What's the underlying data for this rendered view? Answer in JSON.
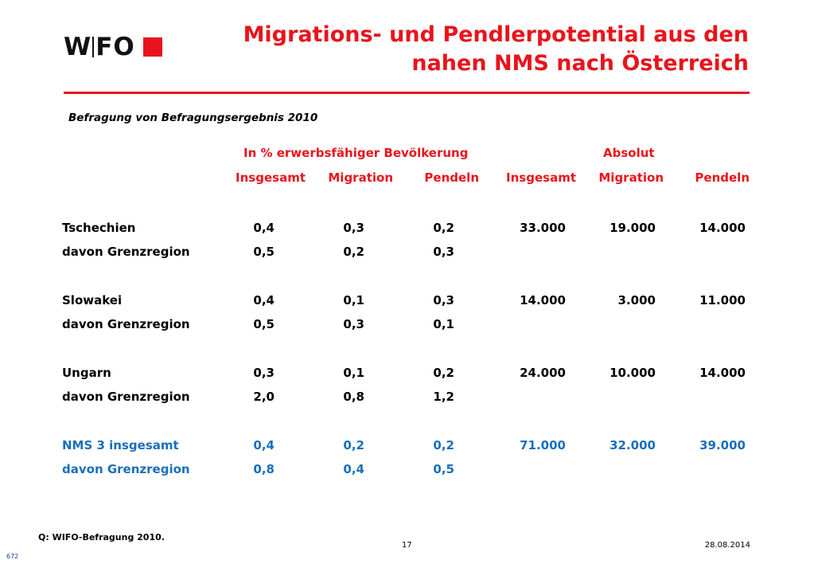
{
  "logo": {
    "text_a": "W",
    "text_b": "F",
    "text_c": "O"
  },
  "title": {
    "line1": "Migrations- und Pendlerpotential aus den",
    "line2": "nahen NMS nach Österreich"
  },
  "subtitle": "Befragung von Befragungsergebnis 2010",
  "header_groups": {
    "percent": "In % erwerbsfähiger Bevölkerung",
    "absolute": "Absolut"
  },
  "columns": [
    "Insgesamt",
    "Migration",
    "Pendeln",
    "Insgesamt",
    "Migration",
    "Pendeln"
  ],
  "rows": [
    {
      "label": "Tschechien",
      "values": [
        "0,4",
        "0,3",
        "0,2",
        "33.000",
        "19.000",
        "14.000"
      ]
    },
    {
      "label": "davon Grenzregion",
      "values": [
        "0,5",
        "0,2",
        "0,3",
        "",
        "",
        ""
      ]
    },
    {
      "label": "Slowakei",
      "values": [
        "0,4",
        "0,1",
        "0,3",
        "14.000",
        "3.000",
        "11.000"
      ]
    },
    {
      "label": "davon Grenzregion",
      "values": [
        "0,5",
        "0,3",
        "0,1",
        "",
        "",
        ""
      ]
    },
    {
      "label": "Ungarn",
      "values": [
        "0,3",
        "0,1",
        "0,2",
        "24.000",
        "10.000",
        "14.000"
      ]
    },
    {
      "label": "davon Grenzregion",
      "values": [
        "2,0",
        "0,8",
        "1,2",
        "",
        "",
        ""
      ]
    },
    {
      "label": "NMS 3 insgesamt",
      "values": [
        "0,4",
        "0,2",
        "0,2",
        "71.000",
        "32.000",
        "39.000"
      ]
    },
    {
      "label": "davon Grenzregion",
      "values": [
        "0,8",
        "0,4",
        "0,5",
        "",
        "",
        ""
      ]
    }
  ],
  "footer": {
    "source": "Q: WIFO-Befragung 2010.",
    "page": "17",
    "date": "28.08.2014",
    "slide_id": "672"
  },
  "colors": {
    "accent": "#e8141c",
    "highlight": "#1a6fba"
  }
}
